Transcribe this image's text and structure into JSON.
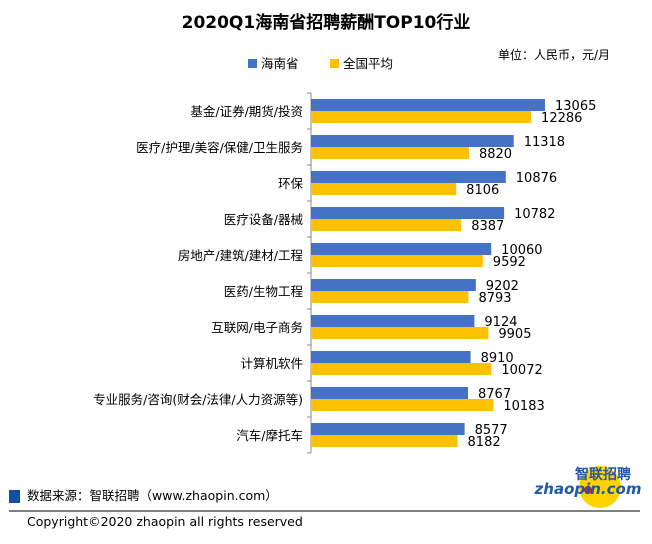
{
  "chart_data": {
    "type": "bar",
    "orientation": "horizontal",
    "title": "2020Q1海南省招聘薪酬TOP10行业",
    "unit_note": "单位：人民币，元/月",
    "categories": [
      "基金/证券/期货/投资",
      "医疗/护理/美容/保健/卫生服务",
      "环保",
      "医疗设备/器械",
      "房地产/建筑/建材/工程",
      "医药/生物工程",
      "互联网/电子商务",
      "计算机软件",
      "专业服务/咨询(财会/法律/人力资源等)",
      "汽车/摩托车"
    ],
    "series": [
      {
        "name": "海南省",
        "color": "#4472C4",
        "values": [
          13065,
          11318,
          10876,
          10782,
          10060,
          9202,
          9124,
          8910,
          8767,
          8577
        ]
      },
      {
        "name": "全国平均",
        "color": "#FFC000",
        "values": [
          12286,
          8820,
          8106,
          8387,
          9592,
          8793,
          9905,
          10072,
          10183,
          8182
        ]
      }
    ],
    "xlim": [
      0,
      14000
    ],
    "grid": false,
    "legend": "top",
    "data_labels": true
  },
  "footer": {
    "source": "数据来源：智联招聘（www.zhaopin.com）",
    "copyright": "Copyright©2020 zhaopin all rights reserved",
    "logo_text": "智联招聘 zhaopin.com",
    "source_marker_color": "#0B52A5"
  }
}
